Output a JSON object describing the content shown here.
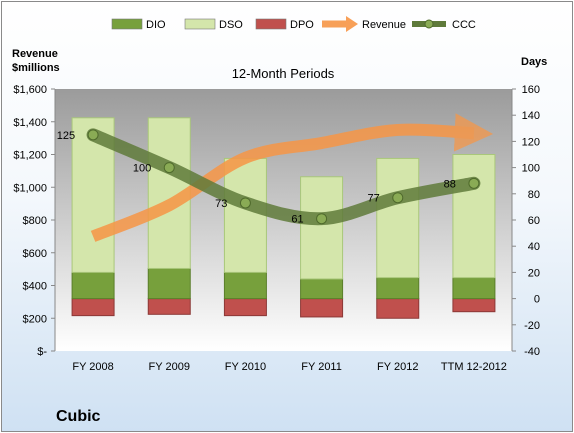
{
  "chart_data": {
    "type": "bar",
    "title": "12-Month Periods",
    "categories": [
      "FY 2008",
      "FY 2009",
      "FY 2010",
      "FY 2011",
      "FY 2012",
      "TTM 12-2012"
    ],
    "left_axis": {
      "title_line1": "Revenue",
      "title_line2": "$millions",
      "range": [
        0,
        1600
      ],
      "ticks": [
        0,
        200,
        400,
        600,
        800,
        1000,
        1200,
        1400,
        1600
      ],
      "tick_labels": [
        "$-",
        "$200",
        "$400",
        "$600",
        "$800",
        "$1,000",
        "$1,200",
        "$1,400",
        "$1,600"
      ]
    },
    "right_axis": {
      "title": "Days",
      "range": [
        -40,
        160
      ],
      "ticks": [
        -40,
        -20,
        0,
        20,
        40,
        60,
        80,
        100,
        120,
        140,
        160
      ],
      "tick_labels": [
        "-40",
        "-20",
        "0",
        "20",
        "40",
        "60",
        "80",
        "100",
        "120",
        "140",
        "160"
      ]
    },
    "series": [
      {
        "name": "DIO",
        "axis": "right",
        "type": "stacked-bar",
        "color": "#77a03c",
        "values": [
          20,
          23,
          20,
          15,
          16,
          16
        ]
      },
      {
        "name": "DSO",
        "axis": "right",
        "type": "stacked-bar",
        "color": "#d4e6ab",
        "values": [
          118,
          115,
          87,
          78,
          91,
          94
        ]
      },
      {
        "name": "DPO",
        "axis": "right",
        "type": "stacked-bar-negative",
        "color": "#c0504d",
        "values": [
          13,
          12,
          13,
          14,
          15,
          10
        ]
      },
      {
        "name": "Revenue",
        "axis": "left",
        "type": "line",
        "color": "#f79646",
        "values": [
          700,
          890,
          1180,
          1270,
          1350,
          1330
        ]
      },
      {
        "name": "CCC",
        "axis": "right",
        "type": "line",
        "color": "#5f7a3a",
        "values": [
          125,
          100,
          73,
          61,
          77,
          88
        ]
      }
    ],
    "data_labels": [
      "125",
      "100",
      "73",
      "61",
      "77",
      "88"
    ],
    "legend_position": "top",
    "grid": false
  },
  "company": "Cubic"
}
